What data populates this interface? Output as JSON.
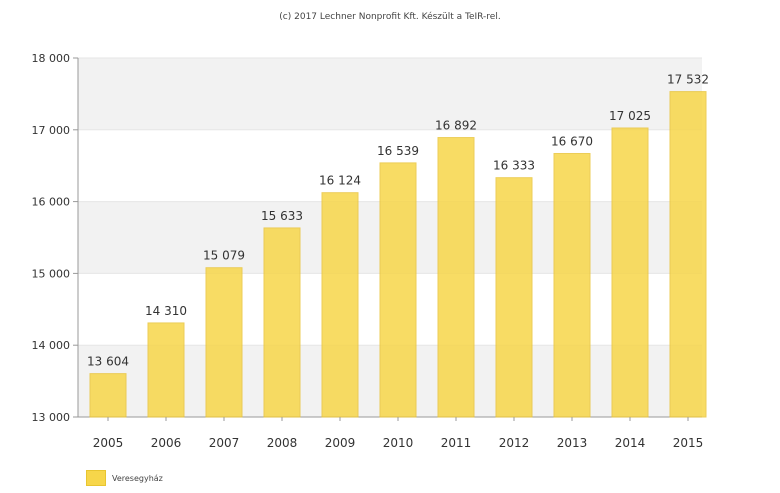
{
  "credit": "(c) 2017 Lechner Nonprofit Kft. Készült a TeIR-rel.",
  "chart_data": {
    "type": "bar",
    "categories": [
      "2005",
      "2006",
      "2007",
      "2008",
      "2009",
      "2010",
      "2011",
      "2012",
      "2013",
      "2014",
      "2015"
    ],
    "series": [
      {
        "name": "Veresegyház",
        "values": [
          13604,
          14310,
          15079,
          15633,
          16124,
          16539,
          16892,
          16333,
          16670,
          17025,
          17532
        ],
        "labels": [
          "13 604",
          "14 310",
          "15 079",
          "15 633",
          "16 124",
          "16 539",
          "16 892",
          "16 333",
          "16 670",
          "17 025",
          "17 532"
        ]
      }
    ],
    "ylim": [
      13000,
      18000
    ],
    "yticks": [
      13000,
      14000,
      15000,
      16000,
      17000,
      18000
    ],
    "ytick_labels": [
      "13 000",
      "14 000",
      "15 000",
      "16 000",
      "17 000",
      "18 000"
    ],
    "grid": true,
    "legend_position": "bottom-left",
    "colors": {
      "bar": "#f7d64a",
      "bar_edge": "#e9c53a",
      "band": "#f2f2f2"
    }
  }
}
